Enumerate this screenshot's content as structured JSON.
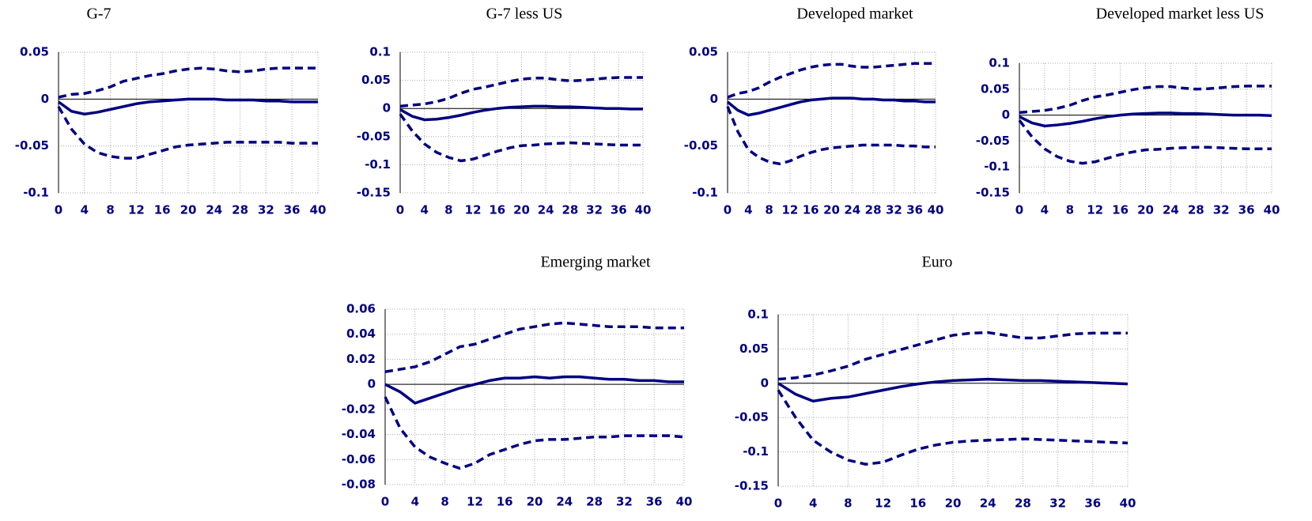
{
  "chart_data": [
    {
      "type": "line",
      "title": "G-7",
      "xlim": [
        0,
        40
      ],
      "xticks": [
        0,
        4,
        8,
        12,
        16,
        20,
        24,
        28,
        32,
        36,
        40
      ],
      "ylim": [
        -0.1,
        0.05
      ],
      "yticks": [
        -0.1,
        -0.05,
        0,
        0.05
      ],
      "grid": true,
      "x": [
        0,
        2,
        4,
        6,
        8,
        10,
        12,
        14,
        16,
        18,
        20,
        22,
        24,
        26,
        28,
        30,
        32,
        34,
        36,
        38,
        40
      ],
      "series": [
        {
          "color": "#000080",
          "style": "solid",
          "values": [
            -0.003,
            -0.013,
            -0.016,
            -0.014,
            -0.011,
            -0.008,
            -0.005,
            -0.003,
            -0.002,
            -0.001,
            0,
            0,
            0,
            -0.001,
            -0.001,
            -0.001,
            -0.002,
            -0.002,
            -0.003,
            -0.003,
            -0.003
          ]
        },
        {
          "color": "#000080",
          "style": "dashed",
          "values": [
            0.002,
            0.005,
            0.006,
            0.009,
            0.013,
            0.019,
            0.022,
            0.025,
            0.027,
            0.03,
            0.032,
            0.033,
            0.032,
            0.03,
            0.029,
            0.03,
            0.032,
            0.033,
            0.033,
            0.033,
            0.033
          ]
        },
        {
          "color": "#000080",
          "style": "dashed",
          "values": [
            -0.008,
            -0.032,
            -0.048,
            -0.057,
            -0.061,
            -0.063,
            -0.063,
            -0.059,
            -0.055,
            -0.051,
            -0.049,
            -0.048,
            -0.047,
            -0.046,
            -0.046,
            -0.046,
            -0.046,
            -0.046,
            -0.047,
            -0.047,
            -0.047
          ]
        }
      ]
    },
    {
      "type": "line",
      "title": "G-7 less US",
      "xlim": [
        0,
        40
      ],
      "xticks": [
        0,
        4,
        8,
        12,
        16,
        20,
        24,
        28,
        32,
        36,
        40
      ],
      "ylim": [
        -0.15,
        0.1
      ],
      "yticks": [
        -0.15,
        -0.1,
        -0.05,
        0,
        0.05,
        0.1
      ],
      "grid": true,
      "x": [
        0,
        2,
        4,
        6,
        8,
        10,
        12,
        14,
        16,
        18,
        20,
        22,
        24,
        26,
        28,
        30,
        32,
        34,
        36,
        38,
        40
      ],
      "series": [
        {
          "color": "#000080",
          "style": "solid",
          "values": [
            -0.002,
            -0.014,
            -0.02,
            -0.019,
            -0.016,
            -0.012,
            -0.007,
            -0.003,
            0,
            0.002,
            0.003,
            0.004,
            0.004,
            0.003,
            0.003,
            0.002,
            0.001,
            0,
            0,
            -0.001,
            -0.001
          ]
        },
        {
          "color": "#000080",
          "style": "dashed",
          "values": [
            0.004,
            0.006,
            0.008,
            0.012,
            0.018,
            0.027,
            0.034,
            0.038,
            0.043,
            0.048,
            0.052,
            0.054,
            0.054,
            0.051,
            0.049,
            0.05,
            0.052,
            0.054,
            0.055,
            0.055,
            0.055
          ]
        },
        {
          "color": "#000080",
          "style": "dashed",
          "values": [
            -0.01,
            -0.04,
            -0.063,
            -0.078,
            -0.087,
            -0.093,
            -0.09,
            -0.083,
            -0.076,
            -0.07,
            -0.066,
            -0.065,
            -0.063,
            -0.062,
            -0.061,
            -0.062,
            -0.063,
            -0.064,
            -0.065,
            -0.065,
            -0.065
          ]
        }
      ]
    },
    {
      "type": "line",
      "title": "Developed market",
      "xlim": [
        0,
        40
      ],
      "xticks": [
        0,
        4,
        8,
        12,
        16,
        20,
        24,
        28,
        32,
        36,
        40
      ],
      "ylim": [
        -0.1,
        0.05
      ],
      "yticks": [
        -0.1,
        -0.05,
        0,
        0.05
      ],
      "grid": true,
      "x": [
        0,
        2,
        4,
        6,
        8,
        10,
        12,
        14,
        16,
        18,
        20,
        22,
        24,
        26,
        28,
        30,
        32,
        34,
        36,
        38,
        40
      ],
      "series": [
        {
          "color": "#000080",
          "style": "solid",
          "values": [
            -0.003,
            -0.012,
            -0.017,
            -0.015,
            -0.012,
            -0.009,
            -0.006,
            -0.003,
            -0.001,
            0,
            0.001,
            0.001,
            0.001,
            0,
            0,
            -0.001,
            -0.001,
            -0.002,
            -0.002,
            -0.003,
            -0.003
          ]
        },
        {
          "color": "#000080",
          "style": "dashed",
          "values": [
            0.002,
            0.006,
            0.008,
            0.012,
            0.018,
            0.023,
            0.027,
            0.031,
            0.034,
            0.036,
            0.037,
            0.037,
            0.035,
            0.034,
            0.034,
            0.035,
            0.036,
            0.037,
            0.038,
            0.038,
            0.038
          ]
        },
        {
          "color": "#000080",
          "style": "dashed",
          "values": [
            -0.008,
            -0.035,
            -0.054,
            -0.062,
            -0.067,
            -0.069,
            -0.066,
            -0.061,
            -0.057,
            -0.054,
            -0.052,
            -0.051,
            -0.05,
            -0.049,
            -0.049,
            -0.049,
            -0.049,
            -0.05,
            -0.05,
            -0.051,
            -0.051
          ]
        }
      ]
    },
    {
      "type": "line",
      "title": "Developed market less US",
      "xlim": [
        0,
        40
      ],
      "xticks": [
        0,
        4,
        8,
        12,
        16,
        20,
        24,
        28,
        32,
        36,
        40
      ],
      "ylim": [
        -0.15,
        0.1
      ],
      "yticks": [
        -0.15,
        -0.1,
        -0.05,
        0,
        0.05,
        0.1
      ],
      "grid": true,
      "x": [
        0,
        2,
        4,
        6,
        8,
        10,
        12,
        14,
        16,
        18,
        20,
        22,
        24,
        26,
        28,
        30,
        32,
        34,
        36,
        38,
        40
      ],
      "series": [
        {
          "color": "#000080",
          "style": "solid",
          "values": [
            -0.003,
            -0.015,
            -0.021,
            -0.019,
            -0.016,
            -0.012,
            -0.007,
            -0.003,
            0,
            0.002,
            0.003,
            0.004,
            0.004,
            0.003,
            0.003,
            0.002,
            0.001,
            0,
            0,
            0,
            -0.001
          ]
        },
        {
          "color": "#000080",
          "style": "dashed",
          "values": [
            0.005,
            0.007,
            0.009,
            0.013,
            0.019,
            0.028,
            0.035,
            0.039,
            0.044,
            0.049,
            0.053,
            0.055,
            0.055,
            0.052,
            0.05,
            0.051,
            0.053,
            0.055,
            0.056,
            0.056,
            0.056
          ]
        },
        {
          "color": "#000080",
          "style": "dashed",
          "values": [
            -0.01,
            -0.042,
            -0.065,
            -0.08,
            -0.089,
            -0.093,
            -0.09,
            -0.083,
            -0.076,
            -0.071,
            -0.067,
            -0.066,
            -0.064,
            -0.063,
            -0.062,
            -0.062,
            -0.063,
            -0.064,
            -0.065,
            -0.065,
            -0.065
          ]
        }
      ]
    },
    {
      "type": "line",
      "title": "Emerging market",
      "xlim": [
        0,
        40
      ],
      "xticks": [
        0,
        4,
        8,
        12,
        16,
        20,
        24,
        28,
        32,
        36,
        40
      ],
      "ylim": [
        -0.08,
        0.06
      ],
      "yticks": [
        -0.08,
        -0.06,
        -0.04,
        -0.02,
        0,
        0.02,
        0.04,
        0.06
      ],
      "grid": true,
      "x": [
        0,
        2,
        4,
        6,
        8,
        10,
        12,
        14,
        16,
        18,
        20,
        22,
        24,
        26,
        28,
        30,
        32,
        34,
        36,
        38,
        40
      ],
      "series": [
        {
          "color": "#000080",
          "style": "solid",
          "values": [
            0,
            -0.006,
            -0.015,
            -0.011,
            -0.007,
            -0.003,
            0,
            0.003,
            0.005,
            0.005,
            0.006,
            0.005,
            0.006,
            0.006,
            0.005,
            0.004,
            0.004,
            0.003,
            0.003,
            0.002,
            0.002
          ]
        },
        {
          "color": "#000080",
          "style": "dashed",
          "values": [
            0.01,
            0.012,
            0.014,
            0.018,
            0.024,
            0.03,
            0.032,
            0.036,
            0.04,
            0.044,
            0.046,
            0.048,
            0.049,
            0.048,
            0.047,
            0.046,
            0.046,
            0.046,
            0.045,
            0.045,
            0.045
          ]
        },
        {
          "color": "#000080",
          "style": "dashed",
          "values": [
            -0.01,
            -0.035,
            -0.05,
            -0.058,
            -0.063,
            -0.067,
            -0.063,
            -0.056,
            -0.052,
            -0.048,
            -0.045,
            -0.044,
            -0.044,
            -0.043,
            -0.042,
            -0.042,
            -0.041,
            -0.041,
            -0.041,
            -0.041,
            -0.042
          ]
        }
      ]
    },
    {
      "type": "line",
      "title": "Euro",
      "xlim": [
        0,
        40
      ],
      "xticks": [
        0,
        4,
        8,
        12,
        16,
        20,
        24,
        28,
        32,
        36,
        40
      ],
      "ylim": [
        -0.15,
        0.1
      ],
      "yticks": [
        -0.15,
        -0.1,
        -0.05,
        0,
        0.05,
        0.1
      ],
      "grid": true,
      "x": [
        0,
        2,
        4,
        6,
        8,
        10,
        12,
        14,
        16,
        18,
        20,
        22,
        24,
        26,
        28,
        30,
        32,
        34,
        36,
        38,
        40
      ],
      "series": [
        {
          "color": "#000080",
          "style": "solid",
          "values": [
            0,
            -0.016,
            -0.026,
            -0.022,
            -0.02,
            -0.015,
            -0.01,
            -0.005,
            -0.001,
            0.002,
            0.004,
            0.005,
            0.006,
            0.005,
            0.004,
            0.004,
            0.003,
            0.002,
            0.001,
            0,
            -0.001
          ]
        },
        {
          "color": "#000080",
          "style": "dashed",
          "values": [
            0.006,
            0.008,
            0.012,
            0.018,
            0.025,
            0.035,
            0.042,
            0.049,
            0.056,
            0.063,
            0.07,
            0.073,
            0.074,
            0.07,
            0.066,
            0.066,
            0.069,
            0.072,
            0.073,
            0.073,
            0.073
          ]
        },
        {
          "color": "#000080",
          "style": "dashed",
          "values": [
            -0.01,
            -0.05,
            -0.083,
            -0.1,
            -0.112,
            -0.118,
            -0.115,
            -0.105,
            -0.096,
            -0.09,
            -0.086,
            -0.084,
            -0.083,
            -0.082,
            -0.081,
            -0.082,
            -0.083,
            -0.084,
            -0.085,
            -0.086,
            -0.087
          ]
        }
      ]
    }
  ]
}
